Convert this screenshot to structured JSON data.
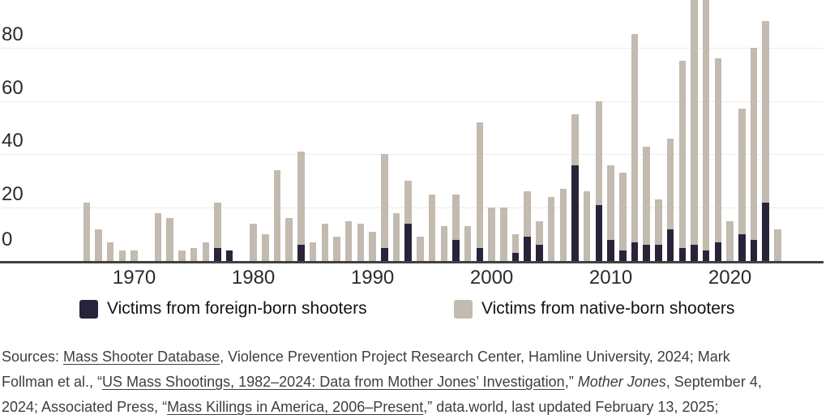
{
  "chart_data": {
    "type": "bar",
    "stacked": true,
    "title": "",
    "xlabel": "",
    "ylabel": "",
    "grid": true,
    "legend_position": "bottom",
    "ylim": [
      0,
      98
    ],
    "y_ticks": [
      0,
      20,
      40,
      60,
      80
    ],
    "x_ticks": [
      1970,
      1980,
      1990,
      2000,
      2010,
      2020
    ],
    "x": [
      1966,
      1967,
      1968,
      1969,
      1970,
      1971,
      1972,
      1973,
      1974,
      1975,
      1976,
      1977,
      1978,
      1979,
      1980,
      1981,
      1982,
      1983,
      1984,
      1985,
      1986,
      1987,
      1988,
      1989,
      1990,
      1991,
      1992,
      1993,
      1994,
      1995,
      1996,
      1997,
      1998,
      1999,
      2000,
      2001,
      2002,
      2003,
      2004,
      2005,
      2006,
      2007,
      2008,
      2009,
      2010,
      2011,
      2012,
      2013,
      2014,
      2015,
      2016,
      2017,
      2018,
      2019,
      2020,
      2021,
      2022,
      2023,
      2024
    ],
    "series": [
      {
        "name": "Victims from foreign-born shooters",
        "color": "#29233a",
        "values": [
          0,
          0,
          0,
          0,
          0,
          0,
          0,
          0,
          0,
          0,
          0,
          5,
          4,
          0,
          0,
          0,
          0,
          0,
          6,
          0,
          0,
          0,
          0,
          0,
          0,
          5,
          0,
          14,
          0,
          0,
          0,
          8,
          0,
          5,
          0,
          0,
          3,
          9,
          6,
          0,
          0,
          36,
          0,
          21,
          8,
          4,
          7,
          6,
          6,
          12,
          5,
          6,
          4,
          7,
          0,
          10,
          8,
          22,
          0
        ]
      },
      {
        "name": "Victims from native-born shooters",
        "color": "#c3bab0",
        "values": [
          22,
          12,
          7,
          4,
          4,
          0,
          18,
          16,
          4,
          5,
          7,
          17,
          0,
          0,
          14,
          10,
          34,
          16,
          35,
          7,
          14,
          9,
          15,
          14,
          11,
          35,
          18,
          16,
          9,
          25,
          13,
          17,
          13,
          47,
          20,
          20,
          7,
          17,
          9,
          24,
          27,
          19,
          26,
          39,
          28,
          29,
          78,
          37,
          17,
          34,
          70,
          99,
          97,
          69,
          15,
          47,
          72,
          68,
          12
        ]
      }
    ]
  },
  "legend": {
    "items": [
      {
        "label": "Victims from foreign-born shooters",
        "color": "#29233a"
      },
      {
        "label": "Victims from native-born shooters",
        "color": "#c3bab0"
      }
    ]
  },
  "sources": {
    "lines": [
      [
        {
          "t": "Sources: "
        },
        {
          "t": "Mass Shooter Database",
          "u": true
        },
        {
          "t": ", Violence Prevention Project Research Center, Hamline University, 2024; Mark"
        }
      ],
      [
        {
          "t": "Follman et al., “"
        },
        {
          "t": "US Mass Shootings, 1982–2024: Data from Mother Jones’ Investigation",
          "u": true
        },
        {
          "t": ",” "
        },
        {
          "t": "Mother Jones",
          "i": true
        },
        {
          "t": ", September 4,"
        }
      ],
      [
        {
          "t": "2024; Associated Press, “"
        },
        {
          "t": "Mass Killings in America, 2006–Present",
          "u": true
        },
        {
          "t": ",” data.world, last updated February 13, 2025;"
        }
      ]
    ]
  }
}
